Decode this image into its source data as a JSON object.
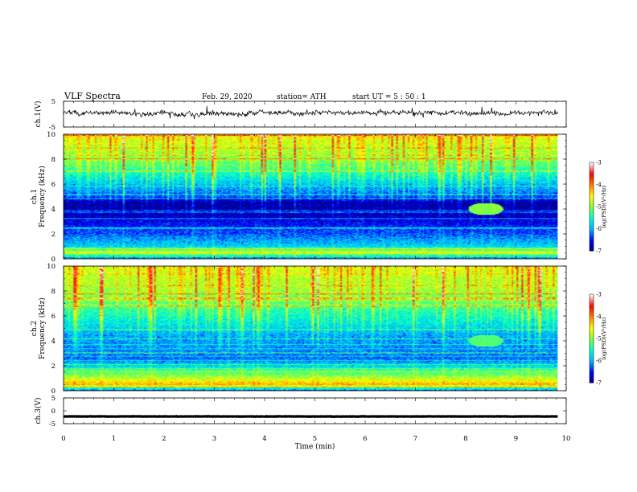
{
  "header": {
    "title": "VLF  Spectra",
    "date": "Feb. 29, 2020",
    "station": "station= ATH",
    "start": "start  UT  =    5  : 50 : 1"
  },
  "colors": {
    "colormap": [
      "#000080",
      "#0000ff",
      "#00b4ff",
      "#00ffd0",
      "#80ff40",
      "#ffff00",
      "#ff8000",
      "#ff0000",
      "#ffffff"
    ]
  },
  "chart_data": [
    {
      "type": "line",
      "name": "ch1-voltage",
      "ylabel": "ch.1(V)",
      "ylim": [
        -5,
        5
      ],
      "yticks": [
        "5",
        "-5"
      ],
      "x_range": [
        0,
        9.83
      ],
      "baseline": 0.4,
      "noise_amplitude": 1.6
    },
    {
      "type": "heatmap",
      "name": "ch1-spectrogram",
      "ylabel": "ch.1\nFrequency  (kHz)",
      "ylim": [
        0,
        10
      ],
      "yticks": [
        "10",
        "8",
        "6",
        "4",
        "2",
        "0"
      ],
      "x_range": [
        0,
        9.83
      ],
      "colorbar": {
        "label": "log(PSD)(V²/Hz)",
        "ticks": [
          "-3",
          "-4",
          "-5",
          "-6",
          "-7"
        ],
        "range": [
          -7,
          -3
        ]
      },
      "profile_khz": [
        [
          0,
          -6.5
        ],
        [
          0.5,
          -4.6
        ],
        [
          1,
          -5.8
        ],
        [
          2,
          -6.3
        ],
        [
          2.5,
          -6.4
        ],
        [
          3.5,
          -6.8
        ],
        [
          4.5,
          -6.9
        ],
        [
          5,
          -6.3
        ],
        [
          6,
          -5.9
        ],
        [
          7,
          -5.4
        ],
        [
          8,
          -5.0
        ],
        [
          9,
          -4.8
        ],
        [
          10,
          -4.5
        ]
      ],
      "feature": {
        "time_min": 8.4,
        "freq_khz": 4.0,
        "log_psd": -5.0
      }
    },
    {
      "type": "heatmap",
      "name": "ch2-spectrogram",
      "ylabel": "ch.2\nFrequency  (kHz)",
      "ylim": [
        0,
        10
      ],
      "yticks": [
        "10",
        "8",
        "6",
        "4",
        "2",
        "0"
      ],
      "x_range": [
        0,
        9.83
      ],
      "colorbar": {
        "label": "log(PSD)(V²/Hz)",
        "ticks": [
          "-3",
          "-4",
          "-5",
          "-6",
          "-7"
        ],
        "range": [
          -7,
          -3
        ]
      },
      "profile_khz": [
        [
          0,
          -6.5
        ],
        [
          0.5,
          -4.2
        ],
        [
          1,
          -4.8
        ],
        [
          2,
          -5.8
        ],
        [
          2.5,
          -6.2
        ],
        [
          3.5,
          -6.1
        ],
        [
          4.5,
          -6.0
        ],
        [
          5,
          -5.8
        ],
        [
          6,
          -5.5
        ],
        [
          7,
          -5.2
        ],
        [
          8,
          -4.9
        ],
        [
          9,
          -4.8
        ],
        [
          10,
          -4.6
        ]
      ],
      "feature": {
        "time_min": 8.4,
        "freq_khz": 4.0,
        "log_psd": -5.2
      }
    },
    {
      "type": "line",
      "name": "ch3-voltage",
      "ylabel": "ch.3(V)",
      "ylim": [
        -5,
        5
      ],
      "yticks": [
        "5",
        "0",
        "-5"
      ],
      "x_range": [
        0,
        9.83
      ],
      "baseline": -2.2,
      "noise_amplitude": 0.1,
      "xlabel": "Time  (min)",
      "xlim": [
        0,
        10
      ],
      "xticks": [
        "0",
        "1",
        "2",
        "3",
        "4",
        "5",
        "6",
        "7",
        "8",
        "9",
        "10"
      ]
    }
  ]
}
